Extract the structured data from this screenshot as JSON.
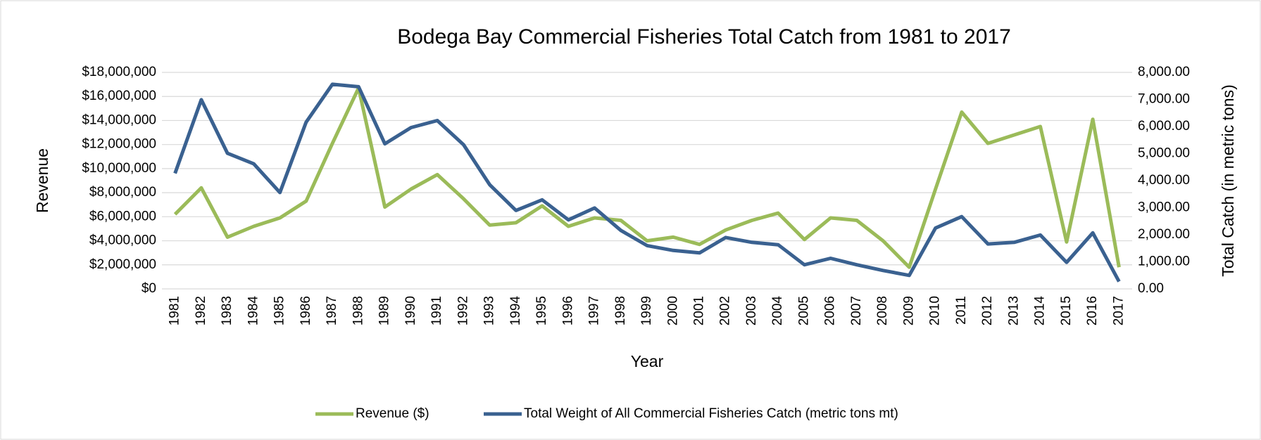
{
  "chart_data": {
    "type": "line",
    "title": "Bodega Bay Commercial Fisheries Total Catch from 1981 to 2017",
    "x_label": "Year",
    "y_label": "Revenue",
    "y2_label": "Total Catch (in metric tons)",
    "categories": [
      "1981",
      "1982",
      "1983",
      "1984",
      "1985",
      "1986",
      "1987",
      "1988",
      "1989",
      "1990",
      "1991",
      "1992",
      "1993",
      "1994",
      "1995",
      "1996",
      "1997",
      "1998",
      "1999",
      "2000",
      "2001",
      "2002",
      "2003",
      "2004",
      "2005",
      "2006",
      "2007",
      "2008",
      "2009",
      "2010",
      "2011",
      "2012",
      "2013",
      "2014",
      "2015",
      "2016",
      "2017"
    ],
    "series": [
      {
        "name": "Revenue ($)",
        "color": "#9bbb59",
        "axis": "y",
        "values": [
          6200000,
          8400000,
          4300000,
          5200000,
          5900000,
          7300000,
          12100000,
          16700000,
          6800000,
          8300000,
          9500000,
          7500000,
          5300000,
          5500000,
          6900000,
          5200000,
          5900000,
          5700000,
          4000000,
          4300000,
          3700000,
          4900000,
          5700000,
          6300000,
          4100000,
          5900000,
          5700000,
          4000000,
          1800000,
          8300000,
          14700000,
          12100000,
          12800000,
          13500000,
          3900000,
          14100000,
          1800000
        ]
      },
      {
        "name": "Total Weight of All Commercial Fisheries Catch (metric tons mt)",
        "color": "#3a6190",
        "axis": "y2",
        "values": [
          4270,
          6990,
          5010,
          4620,
          3560,
          6160,
          7560,
          7470,
          5360,
          5960,
          6220,
          5330,
          3850,
          2900,
          3290,
          2550,
          2990,
          2160,
          1600,
          1420,
          1330,
          1900,
          1720,
          1630,
          890,
          1130,
          890,
          680,
          500,
          2250,
          2670,
          1660,
          1720,
          1990,
          980,
          2070,
          270
        ]
      }
    ],
    "ylim": [
      0,
      18000000
    ],
    "yticks": [
      {
        "value": 0,
        "label": "$0"
      },
      {
        "value": 2000000,
        "label": "$2,000,000"
      },
      {
        "value": 4000000,
        "label": "$4,000,000"
      },
      {
        "value": 6000000,
        "label": "$6,000,000"
      },
      {
        "value": 8000000,
        "label": "$8,000,000"
      },
      {
        "value": 10000000,
        "label": "$10,000,000"
      },
      {
        "value": 12000000,
        "label": "$12,000,000"
      },
      {
        "value": 14000000,
        "label": "$14,000,000"
      },
      {
        "value": 16000000,
        "label": "$16,000,000"
      },
      {
        "value": 18000000,
        "label": "$18,000,000"
      }
    ],
    "y2lim": [
      0,
      8000
    ],
    "y2ticks": [
      {
        "value": 0,
        "label": "0.00"
      },
      {
        "value": 1000,
        "label": "1,000.00"
      },
      {
        "value": 2000,
        "label": "2,000.00"
      },
      {
        "value": 3000,
        "label": "3,000.00"
      },
      {
        "value": 4000,
        "label": "4,000.00"
      },
      {
        "value": 5000,
        "label": "5,000.00"
      },
      {
        "value": 6000,
        "label": "6,000.00"
      },
      {
        "value": 7000,
        "label": "7,000.00"
      },
      {
        "value": 8000,
        "label": "8,000.00"
      }
    ],
    "grid": true,
    "legend": "bottom"
  }
}
